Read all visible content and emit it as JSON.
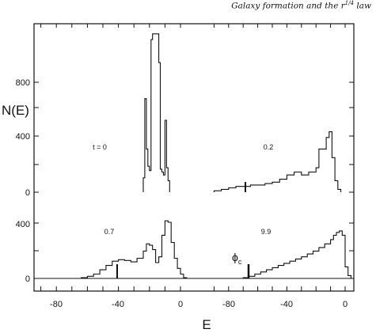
{
  "header": {
    "running_head": "Galaxy formation and the r",
    "running_head_sup": "1/4",
    "running_head_tail": " law"
  },
  "chart_data": {
    "type": "histogram",
    "xlabel": "E",
    "ylabel": "N(E)",
    "grid": false,
    "x_tick_labels": [
      "-80",
      "-40",
      "0",
      "-80",
      "-40",
      "0"
    ],
    "y_tick_labels_top": [
      "800",
      "400",
      "0"
    ],
    "y_tick_labels_bottom": [
      "400",
      "0"
    ],
    "annotations": {
      "phi_label": "ϕ",
      "phi_sub": "c"
    },
    "panels": [
      {
        "label": "t = 0",
        "xlim": [
          -95,
          10
        ],
        "ylim": [
          0,
          1300
        ],
        "bins": [
          [
            -24,
            -23,
            100
          ],
          [
            -23,
            -22,
            650
          ],
          [
            -22,
            -21,
            300
          ],
          [
            -21,
            -20,
            180
          ],
          [
            -20,
            -19,
            150
          ],
          [
            -19,
            -18,
            1060
          ],
          [
            -18,
            -17,
            1100
          ],
          [
            -17,
            -16,
            1100
          ],
          [
            -16,
            -15,
            1100
          ],
          [
            -15,
            -14,
            1100
          ],
          [
            -14,
            -13,
            900
          ],
          [
            -13,
            -12,
            160
          ],
          [
            -12,
            -11,
            140
          ],
          [
            -11,
            -10,
            120
          ],
          [
            -10,
            -9,
            500
          ],
          [
            -9,
            -8,
            170
          ],
          [
            -8,
            -7,
            80
          ]
        ]
      },
      {
        "label": "0.2",
        "xlim": [
          -95,
          10
        ],
        "ylim": [
          0,
          1300
        ],
        "bins": [
          [
            -90,
            -85,
            10
          ],
          [
            -85,
            -80,
            20
          ],
          [
            -80,
            -75,
            30
          ],
          [
            -75,
            -70,
            40
          ],
          [
            -70,
            -65,
            40
          ],
          [
            -65,
            -60,
            50
          ],
          [
            -60,
            -55,
            50
          ],
          [
            -55,
            -50,
            60
          ],
          [
            -50,
            -45,
            70
          ],
          [
            -45,
            -40,
            90
          ],
          [
            -40,
            -35,
            120
          ],
          [
            -35,
            -30,
            140
          ],
          [
            -30,
            -25,
            120
          ],
          [
            -25,
            -20,
            140
          ],
          [
            -20,
            -18,
            170
          ],
          [
            -18,
            -15,
            300
          ],
          [
            -15,
            -13,
            300
          ],
          [
            -13,
            -11,
            380
          ],
          [
            -11,
            -9,
            420
          ],
          [
            -9,
            -7,
            240
          ],
          [
            -7,
            -5,
            80
          ],
          [
            -5,
            -3,
            20
          ]
        ]
      },
      {
        "label": "0.7",
        "xlim": [
          -95,
          10
        ],
        "ylim": [
          0,
          1300
        ],
        "bins": [
          [
            -64,
            -60,
            5
          ],
          [
            -60,
            -56,
            15
          ],
          [
            -56,
            -52,
            30
          ],
          [
            -52,
            -48,
            60
          ],
          [
            -48,
            -44,
            90
          ],
          [
            -44,
            -40,
            120
          ],
          [
            -40,
            -36,
            130
          ],
          [
            -36,
            -32,
            125
          ],
          [
            -32,
            -28,
            115
          ],
          [
            -28,
            -24,
            140
          ],
          [
            -24,
            -22,
            190
          ],
          [
            -22,
            -20,
            240
          ],
          [
            -20,
            -18,
            230
          ],
          [
            -18,
            -16,
            200
          ],
          [
            -16,
            -14,
            110
          ],
          [
            -14,
            -12,
            150
          ],
          [
            -12,
            -10,
            300
          ],
          [
            -10,
            -8,
            400
          ],
          [
            -8,
            -6,
            390
          ],
          [
            -6,
            -4,
            250
          ],
          [
            -4,
            -2,
            140
          ],
          [
            -2,
            0,
            70
          ],
          [
            0,
            2,
            30
          ],
          [
            2,
            4,
            5
          ]
        ]
      },
      {
        "label": "9.9",
        "xlim": [
          -95,
          10
        ],
        "ylim": [
          0,
          1300
        ],
        "bins": [
          [
            -70,
            -66,
            5
          ],
          [
            -66,
            -62,
            15
          ],
          [
            -62,
            -58,
            30
          ],
          [
            -58,
            -54,
            45
          ],
          [
            -54,
            -50,
            60
          ],
          [
            -50,
            -46,
            75
          ],
          [
            -46,
            -42,
            90
          ],
          [
            -42,
            -38,
            105
          ],
          [
            -38,
            -34,
            120
          ],
          [
            -34,
            -30,
            135
          ],
          [
            -30,
            -26,
            150
          ],
          [
            -26,
            -22,
            170
          ],
          [
            -22,
            -18,
            190
          ],
          [
            -18,
            -14,
            215
          ],
          [
            -14,
            -10,
            240
          ],
          [
            -10,
            -8,
            270
          ],
          [
            -8,
            -6,
            300
          ],
          [
            -6,
            -4,
            320
          ],
          [
            -4,
            -2,
            330
          ],
          [
            -2,
            0,
            300
          ],
          [
            0,
            2,
            80
          ],
          [
            2,
            4,
            20
          ]
        ]
      }
    ]
  }
}
